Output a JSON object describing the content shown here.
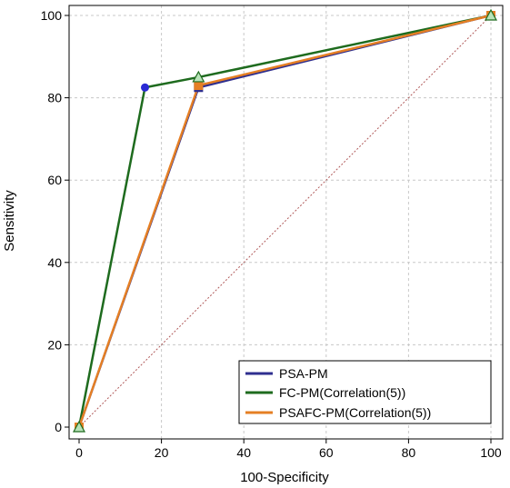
{
  "chart_data": {
    "type": "line",
    "xlabel": "100-Specificity",
    "ylabel": "Sensitivity",
    "xlim": [
      0,
      100
    ],
    "ylim": [
      0,
      100
    ],
    "xticks": [
      0,
      20,
      40,
      60,
      80,
      100
    ],
    "yticks": [
      0,
      20,
      40,
      60,
      80,
      100
    ],
    "grid": true,
    "legend_position": "bottom-right",
    "reference_line": [
      [
        0,
        0
      ],
      [
        100,
        100
      ]
    ],
    "series": [
      {
        "name": "PSA-PM",
        "color": "#2f2f8f",
        "marker": "square",
        "x": [
          0,
          29,
          100
        ],
        "y": [
          0,
          82.5,
          100
        ]
      },
      {
        "name": "FC-PM(Correlation(5))",
        "color": "#1e6b1e",
        "marker": "circle",
        "x": [
          0,
          16,
          29,
          100
        ],
        "y": [
          0,
          82.5,
          85,
          100
        ]
      },
      {
        "name": "PSAFC-PM(Correlation(5))",
        "color": "#e57f24",
        "marker": "square",
        "x": [
          0,
          29,
          100
        ],
        "y": [
          0,
          83,
          100
        ]
      }
    ]
  }
}
